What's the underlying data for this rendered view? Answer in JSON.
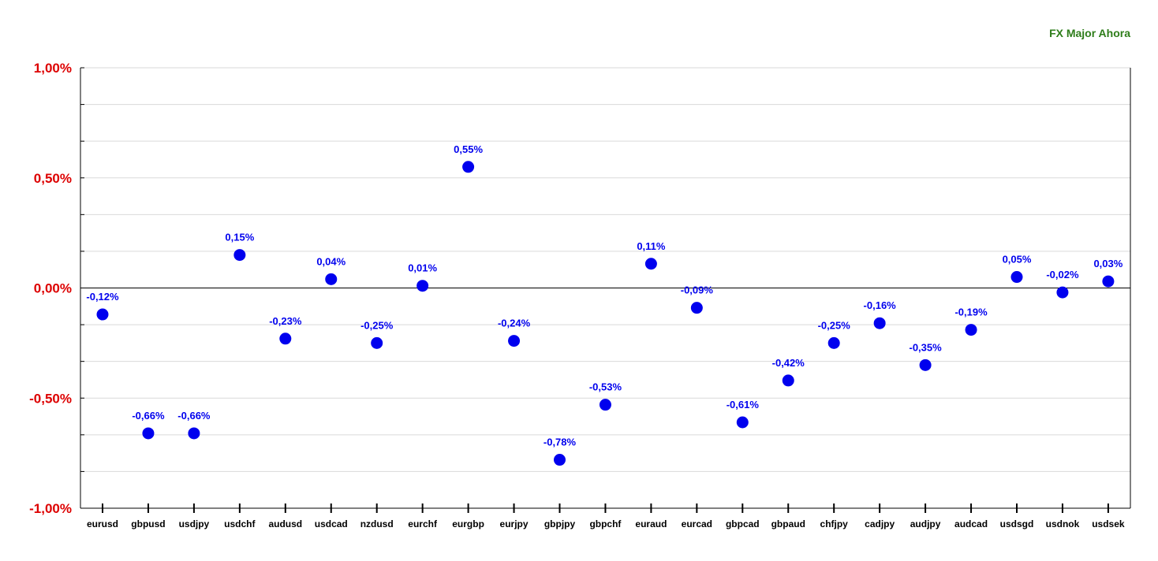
{
  "colors": {
    "title": "#2e7d1a",
    "point": "#0000ee",
    "label": "#0000ee",
    "y_tick": "#dd0000",
    "x_tick": "#000000",
    "grid": "#d9d9d9",
    "axis": "#000000"
  },
  "chart_data": {
    "type": "scatter",
    "title": "FX Major Ahora",
    "xlabel": "",
    "ylabel": "",
    "ylim": [
      -1.0,
      1.0
    ],
    "grid": true,
    "y_ticks": [
      {
        "value": 1.0,
        "label": "1,00%"
      },
      {
        "value": 0.5,
        "label": "0,50%"
      },
      {
        "value": 0.0,
        "label": "0,00%"
      },
      {
        "value": -0.5,
        "label": "-0,50%"
      },
      {
        "value": -1.0,
        "label": "-1,00%"
      }
    ],
    "categories": [
      "eurusd",
      "gbpusd",
      "usdjpy",
      "usdchf",
      "audusd",
      "usdcad",
      "nzdusd",
      "eurchf",
      "eurgbp",
      "eurjpy",
      "gbpjpy",
      "gbpchf",
      "euraud",
      "eurcad",
      "gbpcad",
      "gbpaud",
      "chfjpy",
      "cadjpy",
      "audjpy",
      "audcad",
      "usdsgd",
      "usdnok",
      "usdsek"
    ],
    "values": [
      -0.12,
      -0.66,
      -0.66,
      0.15,
      -0.23,
      0.04,
      -0.25,
      0.01,
      0.55,
      -0.24,
      -0.78,
      -0.53,
      0.11,
      -0.09,
      -0.61,
      -0.42,
      -0.25,
      -0.16,
      -0.35,
      -0.19,
      0.05,
      -0.02,
      0.03
    ],
    "value_labels": [
      "-0,12%",
      "-0,66%",
      "-0,66%",
      "0,15%",
      "-0,23%",
      "0,04%",
      "-0,25%",
      "0,01%",
      "0,55%",
      "-0,24%",
      "-0,78%",
      "-0,53%",
      "0,11%",
      "-0,09%",
      "-0,61%",
      "-0,42%",
      "-0,25%",
      "-0,16%",
      "-0,35%",
      "-0,19%",
      "0,05%",
      "-0,02%",
      "0,03%"
    ]
  }
}
